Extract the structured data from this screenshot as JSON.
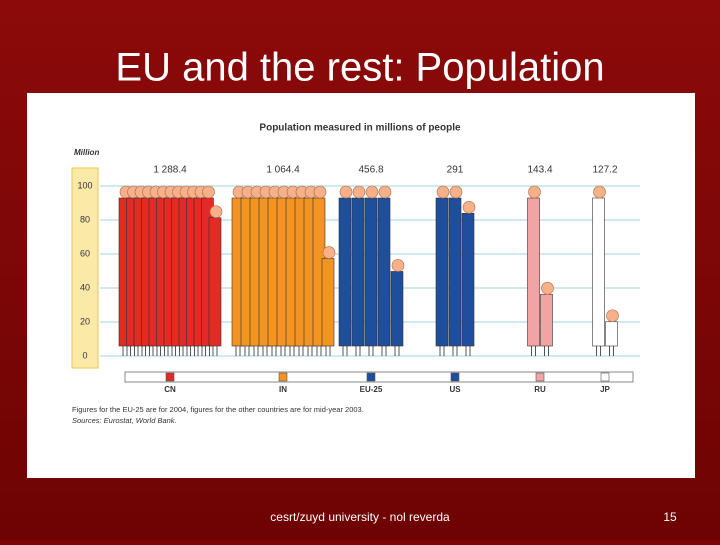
{
  "slide_title": "EU and the rest: Population",
  "footer": "cesrt/zuyd university - nol reverda",
  "page_number": "15",
  "chart_data": {
    "type": "pictogram",
    "title": "Population measured in millions of people",
    "y_label": "Million",
    "categories": [
      "CN",
      "IN",
      "EU-25",
      "US",
      "RU",
      "JP"
    ],
    "values": [
      1288.4,
      1064.4,
      456.8,
      291,
      143.4,
      127.2
    ],
    "value_labels": [
      "1 288.4",
      "1 064.4",
      "456.8",
      "291",
      "143.4",
      "127.2"
    ],
    "colors": [
      "#e42a24",
      "#f39322",
      "#1f4e9c",
      "#1f4e9c",
      "#f2a3a3",
      "#ffffff"
    ],
    "ylim": [
      0,
      100
    ],
    "yticks": [
      0,
      20,
      40,
      60,
      80,
      100
    ],
    "grid": true,
    "note": "Figures for the EU-25 are for 2004, figures for the other countries are for mid-year 2003.",
    "source": "Sources: Eurostat, World Bank."
  }
}
